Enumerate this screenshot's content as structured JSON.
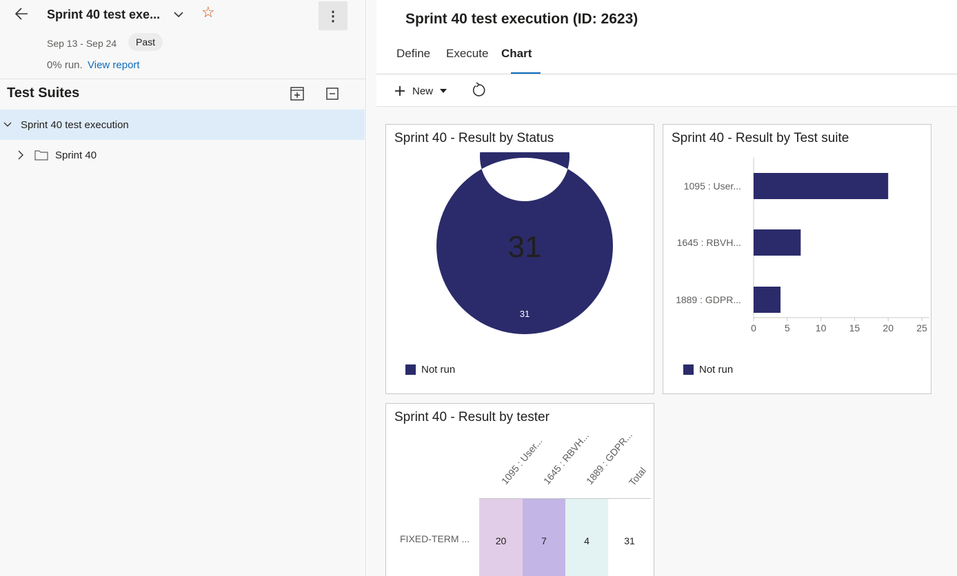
{
  "plan": {
    "title": "Sprint 40 test exe...",
    "dates": "Sep 13 - Sep 24",
    "badge": "Past",
    "run_text": "0% run.",
    "view_report": "View report"
  },
  "suites": {
    "title": "Test Suites",
    "tree": [
      {
        "label": "Sprint 40 test execution",
        "expanded": true,
        "selected": true
      },
      {
        "label": "Sprint 40",
        "expanded": false,
        "selected": false
      }
    ]
  },
  "page": {
    "title": "Sprint 40 test execution (ID: 2623)",
    "tabs": [
      {
        "label": "Define",
        "active": false
      },
      {
        "label": "Execute",
        "active": false
      },
      {
        "label": "Chart",
        "active": true
      }
    ],
    "toolbar": {
      "new_label": "New"
    }
  },
  "colors": {
    "accent": "#0f6cbd",
    "series_not_run": "#2b2b6b"
  },
  "chart_data": [
    {
      "type": "pie",
      "title": "Sprint 40 - Result by Status",
      "center_label": "31",
      "slices": [
        {
          "name": "Not run",
          "value": 31,
          "label": "31"
        }
      ],
      "legend": [
        "Not run"
      ],
      "legend_position": "bottom-left"
    },
    {
      "type": "bar",
      "orientation": "horizontal",
      "title": "Sprint 40 - Result by Test suite",
      "categories": [
        "1095 : User...",
        "1645 : RBVH...",
        "1889 : GDPR..."
      ],
      "series": [
        {
          "name": "Not run",
          "values": [
            20,
            7,
            4
          ]
        }
      ],
      "xlim": [
        0,
        25
      ],
      "xticks": [
        "0",
        "5",
        "10",
        "15",
        "20",
        "25"
      ],
      "legend": [
        "Not run"
      ],
      "legend_position": "bottom-left"
    },
    {
      "type": "table",
      "title": "Sprint 40 - Result by tester",
      "columns": [
        "1095 : User...",
        "1645 : RBVH...",
        "1889 : GDPR...",
        "Total"
      ],
      "rows": [
        {
          "label": "FIXED-TERM ...",
          "values": [
            "20",
            "7",
            "4",
            "31"
          ]
        }
      ],
      "cell_colors": [
        "#e2cde8",
        "#c3b5e6",
        "#e3f2f2",
        "#ffffff"
      ]
    }
  ]
}
